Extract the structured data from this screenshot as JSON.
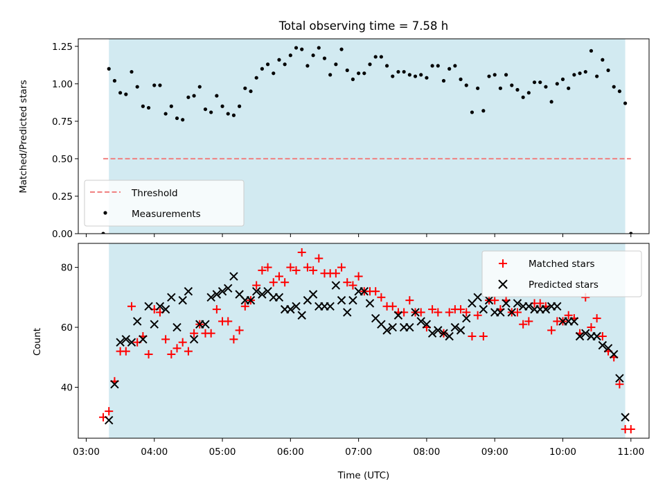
{
  "title": "Total observing time = 7.58 h",
  "chart_data": [
    {
      "type": "scatter",
      "ylabel": "Matched/Predicted stars",
      "ylim": [
        0,
        1.3
      ],
      "yticks": [
        "0.00",
        "0.25",
        "0.50",
        "0.75",
        "1.00",
        "1.25"
      ],
      "ytick_values": [
        0,
        0.25,
        0.5,
        0.75,
        1.0,
        1.25
      ],
      "shaded_span": [
        "03:20",
        "10:55"
      ],
      "shade_color": "#add8e6",
      "threshold": {
        "name": "Threshold",
        "value": 0.5,
        "x_start": "03:15",
        "x_end": "11:00",
        "color": "#f08080"
      },
      "legend": {
        "position": "lower-left",
        "entries": [
          "Threshold",
          "Measurements"
        ]
      },
      "series": [
        {
          "name": "Measurements",
          "color": "#000000",
          "x": [
            "03:15",
            "03:20",
            "03:25",
            "03:30",
            "03:35",
            "03:40",
            "03:45",
            "03:50",
            "03:55",
            "04:00",
            "04:05",
            "04:10",
            "04:15",
            "04:20",
            "04:25",
            "04:30",
            "04:35",
            "04:40",
            "04:45",
            "04:50",
            "04:55",
            "05:00",
            "05:05",
            "05:10",
            "05:15",
            "05:20",
            "05:25",
            "05:30",
            "05:35",
            "05:40",
            "05:45",
            "05:50",
            "05:55",
            "06:00",
            "06:05",
            "06:10",
            "06:15",
            "06:20",
            "06:25",
            "06:30",
            "06:35",
            "06:40",
            "06:45",
            "06:50",
            "06:55",
            "07:00",
            "07:05",
            "07:10",
            "07:15",
            "07:20",
            "07:25",
            "07:30",
            "07:35",
            "07:40",
            "07:45",
            "07:50",
            "07:55",
            "08:00",
            "08:05",
            "08:10",
            "08:15",
            "08:20",
            "08:25",
            "08:30",
            "08:35",
            "08:40",
            "08:45",
            "08:50",
            "08:55",
            "09:00",
            "09:05",
            "09:10",
            "09:15",
            "09:20",
            "09:25",
            "09:30",
            "09:35",
            "09:40",
            "09:45",
            "09:50",
            "09:55",
            "10:00",
            "10:05",
            "10:10",
            "10:15",
            "10:20",
            "10:25",
            "10:30",
            "10:35",
            "10:40",
            "10:45",
            "10:50",
            "10:55",
            "11:00"
          ],
          "y": [
            0.0,
            1.1,
            1.02,
            0.94,
            0.93,
            1.08,
            0.98,
            0.85,
            0.84,
            0.99,
            0.99,
            0.8,
            0.85,
            0.77,
            0.76,
            0.91,
            0.92,
            0.98,
            0.83,
            0.81,
            0.92,
            0.85,
            0.8,
            0.79,
            0.85,
            0.97,
            0.95,
            1.04,
            1.1,
            1.13,
            1.07,
            1.16,
            1.13,
            1.19,
            1.24,
            1.23,
            1.12,
            1.19,
            1.24,
            1.17,
            1.06,
            1.13,
            1.23,
            1.09,
            1.03,
            1.07,
            1.07,
            1.13,
            1.18,
            1.18,
            1.12,
            1.05,
            1.08,
            1.08,
            1.06,
            1.05,
            1.06,
            1.04,
            1.12,
            1.12,
            1.02,
            1.1,
            1.12,
            1.03,
            0.99,
            0.81,
            0.97,
            0.82,
            1.05,
            1.06,
            0.97,
            1.06,
            0.99,
            0.96,
            0.91,
            0.94,
            1.01,
            1.01,
            0.98,
            0.88,
            1.0,
            1.03,
            0.97,
            1.06,
            1.07,
            1.08,
            1.22,
            1.05,
            1.16,
            1.09,
            0.98,
            0.95,
            0.87,
            0.0
          ]
        }
      ]
    },
    {
      "type": "scatter",
      "xlabel": "Time (UTC)",
      "ylabel": "Count",
      "ylim": [
        23,
        88
      ],
      "yticks": [
        "40",
        "60",
        "80"
      ],
      "ytick_values": [
        40,
        60,
        80
      ],
      "xticks": [
        "03:00",
        "04:00",
        "05:00",
        "06:00",
        "07:00",
        "08:00",
        "09:00",
        "10:00",
        "11:00"
      ],
      "xlim": [
        "02:53",
        "11:16"
      ],
      "shaded_span": [
        "03:20",
        "10:55"
      ],
      "shade_color": "#add8e6",
      "legend": {
        "position": "upper-right",
        "entries": [
          "Matched stars",
          "Predicted stars"
        ]
      },
      "series": [
        {
          "name": "Matched stars",
          "marker": "+",
          "color": "#ff0000",
          "x": [
            "03:15",
            "03:20",
            "03:25",
            "03:30",
            "03:35",
            "03:40",
            "03:45",
            "03:50",
            "03:55",
            "04:00",
            "04:05",
            "04:10",
            "04:15",
            "04:20",
            "04:25",
            "04:30",
            "04:35",
            "04:40",
            "04:45",
            "04:50",
            "04:55",
            "05:00",
            "05:05",
            "05:10",
            "05:15",
            "05:20",
            "05:25",
            "05:30",
            "05:35",
            "05:40",
            "05:45",
            "05:50",
            "05:55",
            "06:00",
            "06:05",
            "06:10",
            "06:15",
            "06:20",
            "06:25",
            "06:30",
            "06:35",
            "06:40",
            "06:45",
            "06:50",
            "06:55",
            "07:00",
            "07:05",
            "07:10",
            "07:15",
            "07:20",
            "07:25",
            "07:30",
            "07:35",
            "07:40",
            "07:45",
            "07:50",
            "07:55",
            "08:00",
            "08:05",
            "08:10",
            "08:15",
            "08:20",
            "08:25",
            "08:30",
            "08:35",
            "08:40",
            "08:45",
            "08:50",
            "08:55",
            "09:00",
            "09:05",
            "09:10",
            "09:15",
            "09:20",
            "09:25",
            "09:30",
            "09:35",
            "09:40",
            "09:45",
            "09:50",
            "09:55",
            "10:00",
            "10:05",
            "10:10",
            "10:15",
            "10:20",
            "10:25",
            "10:30",
            "10:35",
            "10:40",
            "10:45",
            "10:50",
            "10:55",
            "11:00"
          ],
          "y": [
            30,
            32,
            42,
            52,
            52,
            67,
            55,
            57,
            51,
            66,
            65,
            56,
            51,
            53,
            55,
            52,
            58,
            61,
            58,
            58,
            66,
            62,
            62,
            56,
            59,
            67,
            69,
            74,
            79,
            80,
            75,
            77,
            75,
            80,
            79,
            85,
            80,
            79,
            83,
            78,
            78,
            78,
            80,
            75,
            74,
            77,
            72,
            72,
            72,
            70,
            67,
            67,
            65,
            65,
            69,
            65,
            65,
            60,
            66,
            65,
            58,
            65,
            66,
            66,
            65,
            57,
            64,
            57,
            69,
            69,
            66,
            69,
            65,
            65,
            61,
            62,
            68,
            68,
            67,
            59,
            62,
            62,
            64,
            63,
            58,
            70,
            60,
            63,
            57,
            52,
            50,
            41,
            26,
            26
          ]
        },
        {
          "name": "Predicted stars",
          "marker": "x",
          "color": "#000000",
          "x": [
            "03:20",
            "03:25",
            "03:30",
            "03:35",
            "03:40",
            "03:45",
            "03:50",
            "03:55",
            "04:00",
            "04:05",
            "04:10",
            "04:15",
            "04:20",
            "04:25",
            "04:30",
            "04:35",
            "04:40",
            "04:45",
            "04:50",
            "04:55",
            "05:00",
            "05:05",
            "05:10",
            "05:15",
            "05:20",
            "05:25",
            "05:30",
            "05:35",
            "05:40",
            "05:45",
            "05:50",
            "05:55",
            "06:00",
            "06:05",
            "06:10",
            "06:15",
            "06:20",
            "06:25",
            "06:30",
            "06:35",
            "06:40",
            "06:45",
            "06:50",
            "06:55",
            "07:00",
            "07:05",
            "07:10",
            "07:15",
            "07:20",
            "07:25",
            "07:30",
            "07:35",
            "07:40",
            "07:45",
            "07:50",
            "07:55",
            "08:00",
            "08:05",
            "08:10",
            "08:15",
            "08:20",
            "08:25",
            "08:30",
            "08:35",
            "08:40",
            "08:45",
            "08:50",
            "08:55",
            "09:00",
            "09:05",
            "09:10",
            "09:15",
            "09:20",
            "09:25",
            "09:30",
            "09:35",
            "09:40",
            "09:45",
            "09:50",
            "09:55",
            "10:00",
            "10:05",
            "10:10",
            "10:15",
            "10:20",
            "10:25",
            "10:30",
            "10:35",
            "10:40",
            "10:45",
            "10:50",
            "10:55"
          ],
          "y": [
            29,
            41,
            55,
            56,
            55,
            62,
            56,
            67,
            61,
            67,
            66,
            70,
            60,
            69,
            72,
            56,
            61,
            61,
            70,
            71,
            72,
            73,
            77,
            71,
            69,
            69,
            72,
            71,
            72,
            70,
            70,
            66,
            66,
            67,
            64,
            69,
            71,
            67,
            67,
            67,
            74,
            69,
            65,
            69,
            72,
            72,
            68,
            63,
            61,
            59,
            60,
            64,
            60,
            60,
            65,
            62,
            61,
            58,
            59,
            58,
            57,
            60,
            59,
            63,
            68,
            70,
            66,
            69,
            65,
            65,
            68,
            65,
            68,
            67,
            67,
            66,
            66,
            66,
            67,
            67,
            62,
            62,
            62,
            57,
            58,
            57,
            57,
            54,
            53,
            51,
            43,
            30
          ]
        }
      ]
    }
  ]
}
